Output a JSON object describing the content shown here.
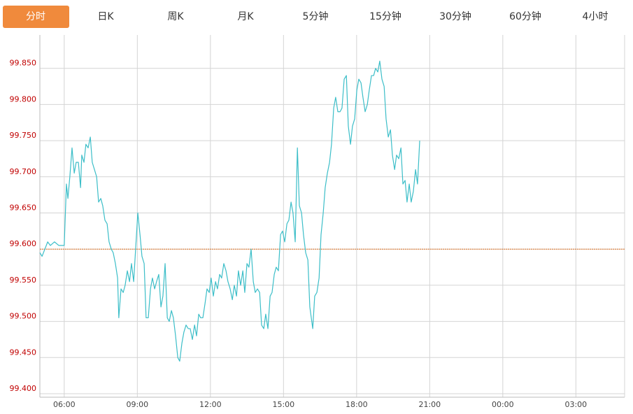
{
  "tabs": [
    "分时",
    "日K",
    "周K",
    "月K",
    "5分钟",
    "15分钟",
    "30分钟",
    "60分钟",
    "4小时"
  ],
  "active_tab": 0,
  "chart_data": {
    "type": "line",
    "color": "#3cbec8",
    "grid": true,
    "xlim": [
      5,
      29
    ],
    "xticks": [
      {
        "value": 6,
        "label": "06:00"
      },
      {
        "value": 9,
        "label": "09:00"
      },
      {
        "value": 12,
        "label": "12:00"
      },
      {
        "value": 15,
        "label": "15:00"
      },
      {
        "value": 18,
        "label": "18:00"
      },
      {
        "value": 21,
        "label": "21:00"
      },
      {
        "value": 24,
        "label": "00:00"
      },
      {
        "value": 27,
        "label": "03:00"
      }
    ],
    "ylim": [
      99.4,
      99.9
    ],
    "yticks": [
      {
        "value": 99.4,
        "label": "99.400"
      },
      {
        "value": 99.45,
        "label": "99.450"
      },
      {
        "value": 99.5,
        "label": "99.500"
      },
      {
        "value": 99.55,
        "label": "99.550"
      },
      {
        "value": 99.6,
        "label": "99.600"
      },
      {
        "value": 99.65,
        "label": "99.650"
      },
      {
        "value": 99.7,
        "label": "99.700"
      },
      {
        "value": 99.75,
        "label": "99.750"
      },
      {
        "value": 99.8,
        "label": "99.800"
      },
      {
        "value": 99.85,
        "label": "99.850"
      }
    ],
    "reference_line": {
      "value": 99.6,
      "color": "#e07020"
    },
    "x": [
      5.0,
      5.09,
      5.32,
      5.43,
      5.6,
      5.78,
      6.0,
      6.09,
      6.15,
      6.23,
      6.32,
      6.41,
      6.49,
      6.58,
      6.67,
      6.72,
      6.81,
      6.89,
      6.98,
      7.07,
      7.15,
      7.24,
      7.33,
      7.41,
      7.5,
      7.58,
      7.67,
      7.76,
      7.84,
      7.93,
      8.01,
      8.1,
      8.19,
      8.24,
      8.33,
      8.42,
      8.5,
      8.59,
      8.68,
      8.76,
      8.85,
      8.93,
      9.02,
      9.11,
      9.19,
      9.28,
      9.36,
      9.45,
      9.54,
      9.62,
      9.71,
      9.79,
      9.88,
      9.97,
      10.05,
      10.14,
      10.23,
      10.31,
      10.4,
      10.48,
      10.57,
      10.66,
      10.74,
      10.83,
      10.91,
      11.0,
      11.09,
      11.17,
      11.26,
      11.35,
      11.43,
      11.52,
      11.6,
      11.69,
      11.78,
      11.86,
      11.95,
      12.03,
      12.12,
      12.21,
      12.29,
      12.38,
      12.46,
      12.55,
      12.64,
      12.72,
      12.81,
      12.9,
      12.98,
      13.07,
      13.15,
      13.24,
      13.33,
      13.41,
      13.5,
      13.58,
      13.67,
      13.76,
      13.84,
      13.93,
      14.02,
      14.1,
      14.19,
      14.27,
      14.36,
      14.45,
      14.53,
      14.62,
      14.7,
      14.79,
      14.88,
      14.96,
      15.05,
      15.14,
      15.22,
      15.31,
      15.39,
      15.48,
      15.57,
      15.65,
      15.74,
      15.82,
      15.91,
      16.0,
      16.08,
      16.2,
      16.28,
      16.37,
      16.46,
      16.54,
      16.63,
      16.71,
      16.8,
      16.89,
      16.97,
      17.06,
      17.14,
      17.23,
      17.32,
      17.4,
      17.49,
      17.58,
      17.66,
      17.75,
      17.83,
      17.92,
      18.01,
      18.09,
      18.18,
      18.26,
      18.35,
      18.44,
      18.52,
      18.61,
      18.7,
      18.78,
      18.87,
      18.95,
      19.04,
      19.13,
      19.21,
      19.3,
      19.39,
      19.47,
      19.56,
      19.64,
      19.73,
      19.82,
      19.9,
      19.99,
      20.07,
      20.16,
      20.24,
      20.33,
      20.42,
      20.5,
      20.59
    ],
    "values": [
      99.595,
      99.59,
      99.61,
      99.605,
      99.61,
      99.605,
      99.605,
      99.69,
      99.67,
      99.7,
      99.74,
      99.705,
      99.72,
      99.72,
      99.685,
      99.73,
      99.72,
      99.745,
      99.74,
      99.755,
      99.72,
      99.71,
      99.7,
      99.665,
      99.67,
      99.66,
      99.64,
      99.635,
      99.61,
      99.6,
      99.595,
      99.58,
      99.56,
      99.505,
      99.545,
      99.54,
      99.55,
      99.57,
      99.555,
      99.58,
      99.555,
      99.6,
      99.65,
      99.62,
      99.59,
      99.58,
      99.505,
      99.505,
      99.545,
      99.56,
      99.545,
      99.555,
      99.565,
      99.52,
      99.535,
      99.58,
      99.505,
      99.5,
      99.515,
      99.505,
      99.48,
      99.45,
      99.445,
      99.47,
      99.485,
      99.495,
      99.49,
      99.49,
      99.475,
      99.495,
      99.48,
      99.51,
      99.505,
      99.505,
      99.525,
      99.545,
      99.54,
      99.56,
      99.535,
      99.555,
      99.545,
      99.565,
      99.56,
      99.58,
      99.57,
      99.555,
      99.545,
      99.53,
      99.55,
      99.535,
      99.57,
      99.55,
      99.57,
      99.54,
      99.58,
      99.575,
      99.6,
      99.555,
      99.54,
      99.545,
      99.54,
      99.495,
      99.49,
      99.51,
      99.49,
      99.535,
      99.54,
      99.565,
      99.575,
      99.57,
      99.62,
      99.625,
      99.61,
      99.635,
      99.64,
      99.665,
      99.65,
      99.61,
      99.74,
      99.66,
      99.65,
      99.62,
      99.595,
      99.585,
      99.52,
      99.49,
      99.535,
      99.54,
      99.56,
      99.62,
      99.65,
      99.685,
      99.705,
      99.72,
      99.745,
      99.795,
      99.81,
      99.79,
      99.79,
      99.795,
      99.835,
      99.84,
      99.77,
      99.745,
      99.77,
      99.78,
      99.82,
      99.835,
      99.83,
      99.81,
      99.79,
      99.8,
      99.82,
      99.84,
      99.84,
      99.85,
      99.845,
      99.86,
      99.835,
      99.825,
      99.78,
      99.755,
      99.765,
      99.73,
      99.71,
      99.73,
      99.725,
      99.74,
      99.69,
      99.695,
      99.665,
      99.69,
      99.665,
      99.68,
      99.71,
      99.69,
      99.75
    ]
  }
}
